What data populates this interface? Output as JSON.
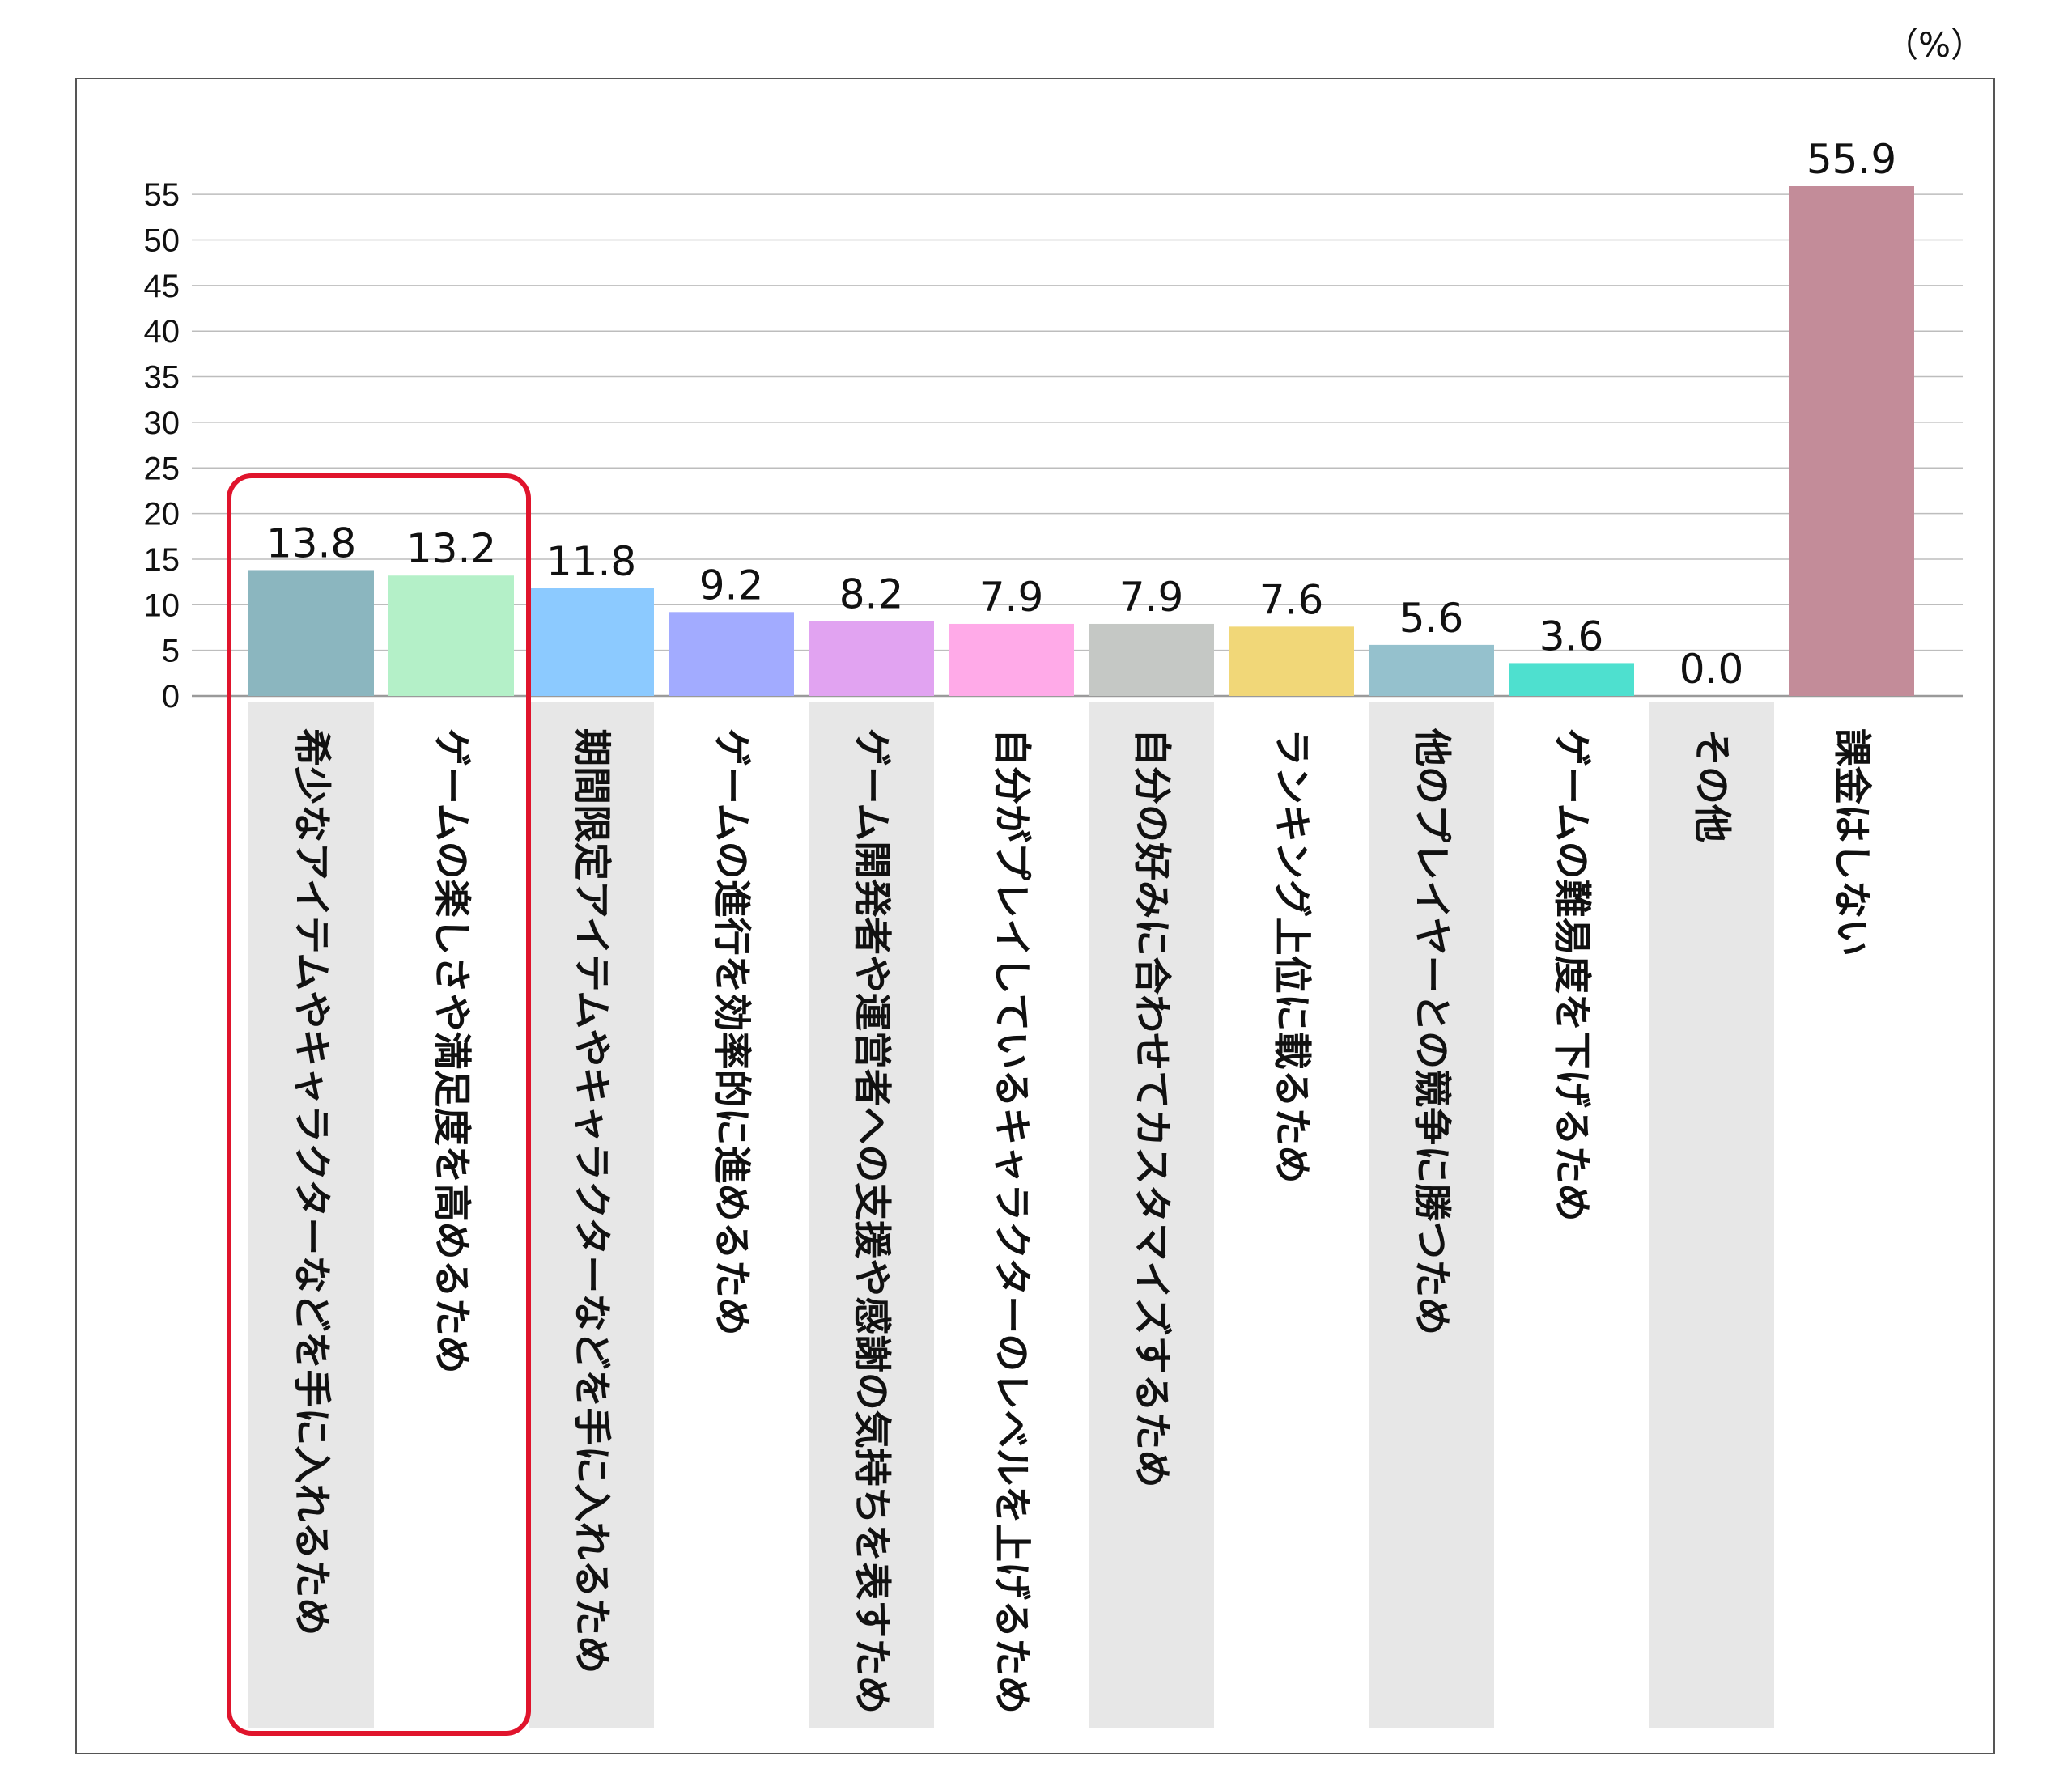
{
  "chart_data": {
    "type": "bar",
    "unit_label": "（%）",
    "categories": [
      "希少なアイテムやキャラクターなどを手に入れるため",
      "ゲームの楽しさや満足度を高めるため",
      "期間限定アイテムやキャラクターなどを手に入れるため",
      "ゲームの進行を効率的に進めるため",
      "ゲーム開発者や運営者への支援や感謝の気持ちを表すため",
      "自分がプレイしているキャラクターのレベルを上げるため",
      "自分の好みに合わせてカスタマイズするため",
      "ランキング上位に載るため",
      "他のプレイヤーとの競争に勝つため",
      "ゲームの難易度を下げるため",
      "その他",
      "課金はしない"
    ],
    "values": [
      13.8,
      13.2,
      11.8,
      9.2,
      8.2,
      7.9,
      7.9,
      7.6,
      5.6,
      3.6,
      0.0,
      55.9
    ],
    "value_labels": [
      "13.8",
      "13.2",
      "11.8",
      "9.2",
      "8.2",
      "7.9",
      "7.9",
      "7.6",
      "5.6",
      "3.6",
      "0.0",
      "55.9"
    ],
    "colors": [
      "#8bb6bf",
      "#b4f0c8",
      "#8ccaff",
      "#a2abff",
      "#e1a3f1",
      "#ffaae8",
      "#c5c8c5",
      "#f1d778",
      "#95c1cd",
      "#4ee0cf",
      "#e3e3e3",
      "#c38c99"
    ],
    "ylim": [
      0,
      55
    ],
    "yticks": [
      0,
      5,
      10,
      15,
      20,
      25,
      30,
      35,
      40,
      45,
      50,
      55
    ],
    "grid": true,
    "highlight_categories": [
      0,
      1
    ],
    "highlight_color": "#e0142c"
  }
}
